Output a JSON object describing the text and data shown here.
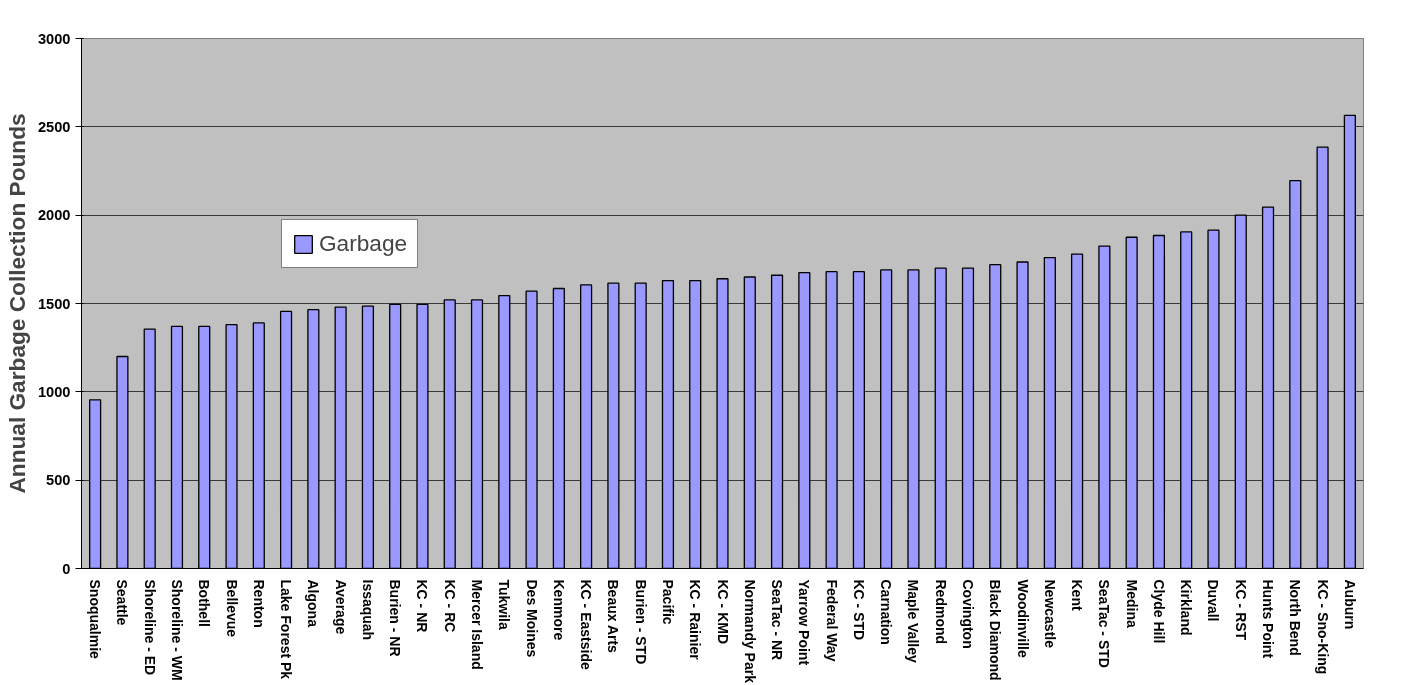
{
  "chart_data": {
    "type": "bar",
    "ylabel": "Annual Garbage Collection Pounds",
    "categories": [
      "Snoqualmie",
      "Seattle",
      "Shoreline - ED",
      "Shoreline - WM",
      "Bothell",
      "Bellevue",
      "Renton",
      "Lake Forest Pk",
      "Algona",
      "Average",
      "Issaquah",
      "Burien - NR",
      "KC - NR",
      "KC - RC",
      "Mercer Island",
      "Tukwila",
      "Des Moines",
      "Kenmore",
      "KC - Eastside",
      "Beaux Arts",
      "Burien - STD",
      "Pacific",
      "KC - Rainier",
      "KC - KMD",
      "Normandy Park",
      "SeaTac - NR",
      "Yarrow Point",
      "Federal Way",
      "KC - STD",
      "Carnation",
      "Maple Valley",
      "Redmond",
      "Covington",
      "Black Diamond",
      "Woodinville",
      "Newcastle",
      "Kent",
      "SeaTac - STD",
      "Medina",
      "Clyde Hill",
      "Kirkland",
      "Duvall",
      "KC - RST",
      "Hunts Point",
      "North Bend",
      "KC - Sno-King",
      "Auburn"
    ],
    "series": [
      {
        "name": "Garbage",
        "color": "#9999ff",
        "values": [
          955,
          1200,
          1355,
          1370,
          1370,
          1380,
          1390,
          1455,
          1465,
          1480,
          1485,
          1495,
          1495,
          1520,
          1520,
          1545,
          1570,
          1585,
          1605,
          1615,
          1615,
          1630,
          1630,
          1640,
          1650,
          1660,
          1675,
          1680,
          1680,
          1690,
          1690,
          1700,
          1700,
          1720,
          1735,
          1760,
          1780,
          1825,
          1875,
          1885,
          1905,
          1915,
          2000,
          2045,
          2195,
          2385,
          2565
        ]
      }
    ],
    "ylim": [
      0,
      3000
    ],
    "yticks": [
      0,
      500,
      1000,
      1500,
      2000,
      2500,
      3000
    ],
    "grid": "y",
    "legend": "top left"
  }
}
